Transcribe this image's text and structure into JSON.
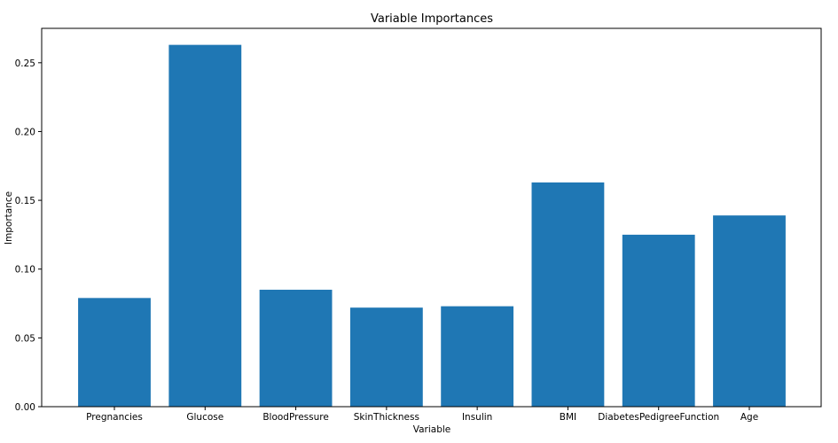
{
  "chart_data": {
    "type": "bar",
    "title": "Variable Importances",
    "xlabel": "Variable",
    "ylabel": "Importance",
    "categories": [
      "Pregnancies",
      "Glucose",
      "BloodPressure",
      "SkinThickness",
      "Insulin",
      "BMI",
      "DiabetesPedigreeFunction",
      "Age"
    ],
    "values": [
      0.079,
      0.263,
      0.085,
      0.072,
      0.073,
      0.163,
      0.125,
      0.139
    ],
    "ylim": [
      0,
      0.275
    ],
    "yticks": [
      "0.00",
      "0.05",
      "0.10",
      "0.15",
      "0.20",
      "0.25"
    ],
    "bar_color": "#1f77b4",
    "grid": false
  }
}
